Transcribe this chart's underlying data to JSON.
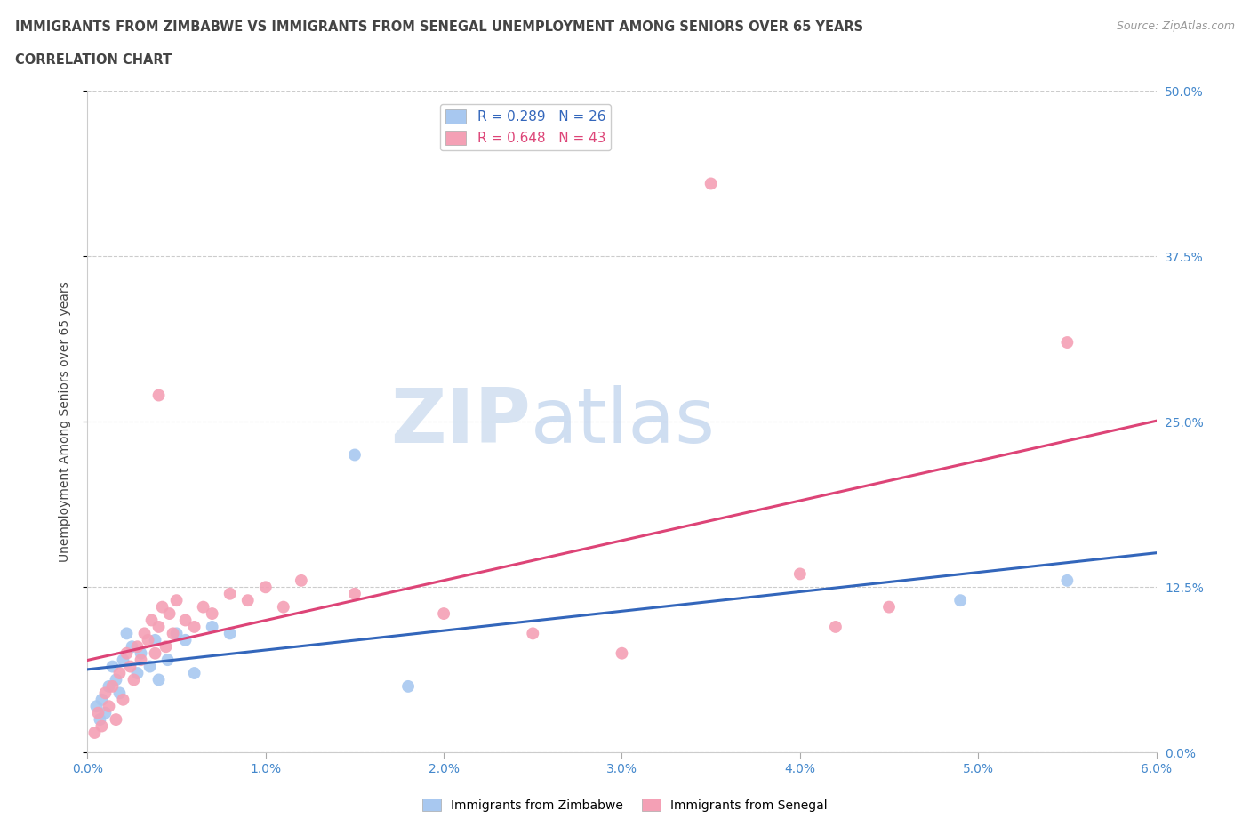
{
  "title_line1": "IMMIGRANTS FROM ZIMBABWE VS IMMIGRANTS FROM SENEGAL UNEMPLOYMENT AMONG SENIORS OVER 65 YEARS",
  "title_line2": "CORRELATION CHART",
  "source_text": "Source: ZipAtlas.com",
  "xlabel_ticks": [
    "0.0%",
    "1.0%",
    "2.0%",
    "3.0%",
    "4.0%",
    "5.0%",
    "6.0%"
  ],
  "xlabel_vals": [
    0.0,
    1.0,
    2.0,
    3.0,
    4.0,
    5.0,
    6.0
  ],
  "ylabel_ticks": [
    "0.0%",
    "12.5%",
    "25.0%",
    "37.5%",
    "50.0%"
  ],
  "ylabel_vals": [
    0.0,
    12.5,
    25.0,
    37.5,
    50.0
  ],
  "ylabel_label": "Unemployment Among Seniors over 65 years",
  "xlim": [
    0.0,
    6.0
  ],
  "ylim": [
    0.0,
    50.0
  ],
  "watermark_zip": "ZIP",
  "watermark_atlas": "atlas",
  "legend_bottom": [
    "Immigrants from Zimbabwe",
    "Immigrants from Senegal"
  ],
  "zimbabwe_color": "#a8c8f0",
  "senegal_color": "#f4a0b5",
  "zimbabwe_line_color": "#3366bb",
  "senegal_line_color": "#dd4477",
  "zimbabwe_R": 0.289,
  "zimbabwe_N": 26,
  "senegal_R": 0.648,
  "senegal_N": 43,
  "zimbabwe_scatter_x": [
    0.05,
    0.07,
    0.08,
    0.1,
    0.12,
    0.14,
    0.16,
    0.18,
    0.2,
    0.22,
    0.25,
    0.28,
    0.3,
    0.35,
    0.38,
    0.4,
    0.45,
    0.5,
    0.55,
    0.6,
    0.7,
    0.8,
    1.5,
    1.8,
    4.9,
    5.5
  ],
  "zimbabwe_scatter_y": [
    3.5,
    2.5,
    4.0,
    3.0,
    5.0,
    6.5,
    5.5,
    4.5,
    7.0,
    9.0,
    8.0,
    6.0,
    7.5,
    6.5,
    8.5,
    5.5,
    7.0,
    9.0,
    8.5,
    6.0,
    9.5,
    9.0,
    22.5,
    5.0,
    11.5,
    13.0
  ],
  "senegal_scatter_x": [
    0.04,
    0.06,
    0.08,
    0.1,
    0.12,
    0.14,
    0.16,
    0.18,
    0.2,
    0.22,
    0.24,
    0.26,
    0.28,
    0.3,
    0.32,
    0.34,
    0.36,
    0.38,
    0.4,
    0.42,
    0.44,
    0.46,
    0.48,
    0.5,
    0.55,
    0.6,
    0.65,
    0.7,
    0.8,
    0.9,
    1.0,
    1.1,
    1.2,
    1.5,
    2.0,
    2.5,
    3.0,
    3.5,
    4.0,
    4.2,
    4.5,
    5.5,
    0.4
  ],
  "senegal_scatter_y": [
    1.5,
    3.0,
    2.0,
    4.5,
    3.5,
    5.0,
    2.5,
    6.0,
    4.0,
    7.5,
    6.5,
    5.5,
    8.0,
    7.0,
    9.0,
    8.5,
    10.0,
    7.5,
    9.5,
    11.0,
    8.0,
    10.5,
    9.0,
    11.5,
    10.0,
    9.5,
    11.0,
    10.5,
    12.0,
    11.5,
    12.5,
    11.0,
    13.0,
    12.0,
    10.5,
    9.0,
    7.5,
    43.0,
    13.5,
    9.5,
    11.0,
    31.0,
    27.0
  ],
  "background_color": "#ffffff",
  "grid_color": "#cccccc",
  "title_color": "#444444",
  "tick_label_color": "#4488cc"
}
